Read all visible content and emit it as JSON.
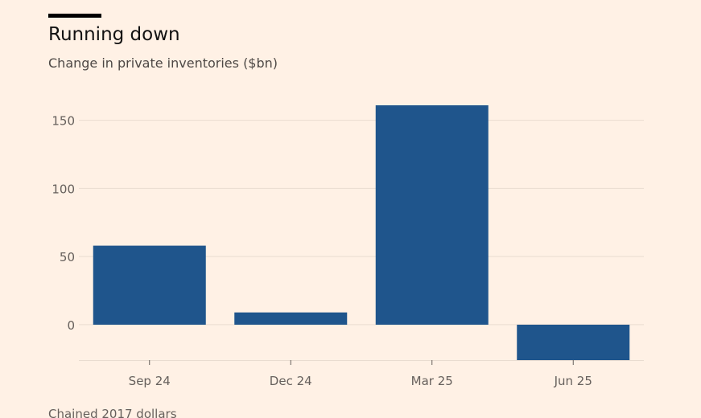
{
  "header": {
    "title": "Running down",
    "subtitle": "Change in private inventories ($bn)"
  },
  "footer": {
    "note": "Chained 2017 dollars"
  },
  "colors": {
    "background": "#fff1e5",
    "bar": "#1f558c",
    "grid": "#e9dcd0",
    "tick_text": "#66605c"
  },
  "chart_data": {
    "type": "bar",
    "categories": [
      "Sep 24",
      "Dec 24",
      "Mar 25",
      "Jun 25"
    ],
    "values": [
      58,
      9,
      161,
      -26
    ],
    "ylim": [
      -26,
      161
    ],
    "yticks": [
      0,
      50,
      100,
      150
    ],
    "grid": true,
    "xlabel": "",
    "ylabel": ""
  }
}
